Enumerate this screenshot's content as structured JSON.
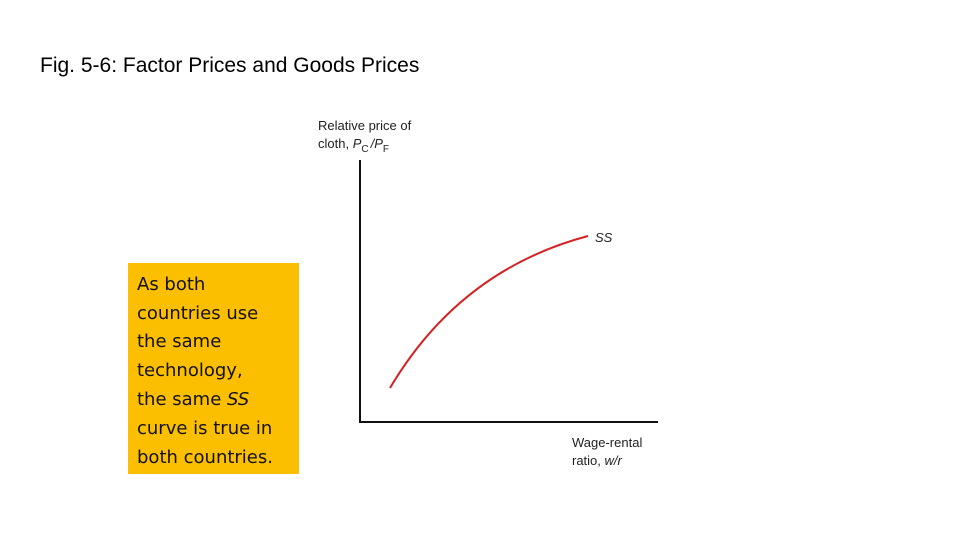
{
  "header": {
    "title": "Fig. 5-6:  Factor Prices and Goods Prices"
  },
  "figure": {
    "y_axis": {
      "line1": "Relative price of",
      "line2": {
        "text": "cloth,",
        "numerator": "P",
        "numerator_sub": "C",
        "denominator": "/P",
        "denominator_sub": "F"
      }
    },
    "x_axis": {
      "line1": "Wage-rental",
      "line2": "ratio,",
      "variable": "w/r"
    },
    "curve_label": "SS"
  },
  "note": {
    "lines": [
      "As both",
      "countries use",
      "the same",
      "technology,",
      "the same",
      "curve is true in",
      "both countries."
    ],
    "emphasis": "SS"
  }
}
